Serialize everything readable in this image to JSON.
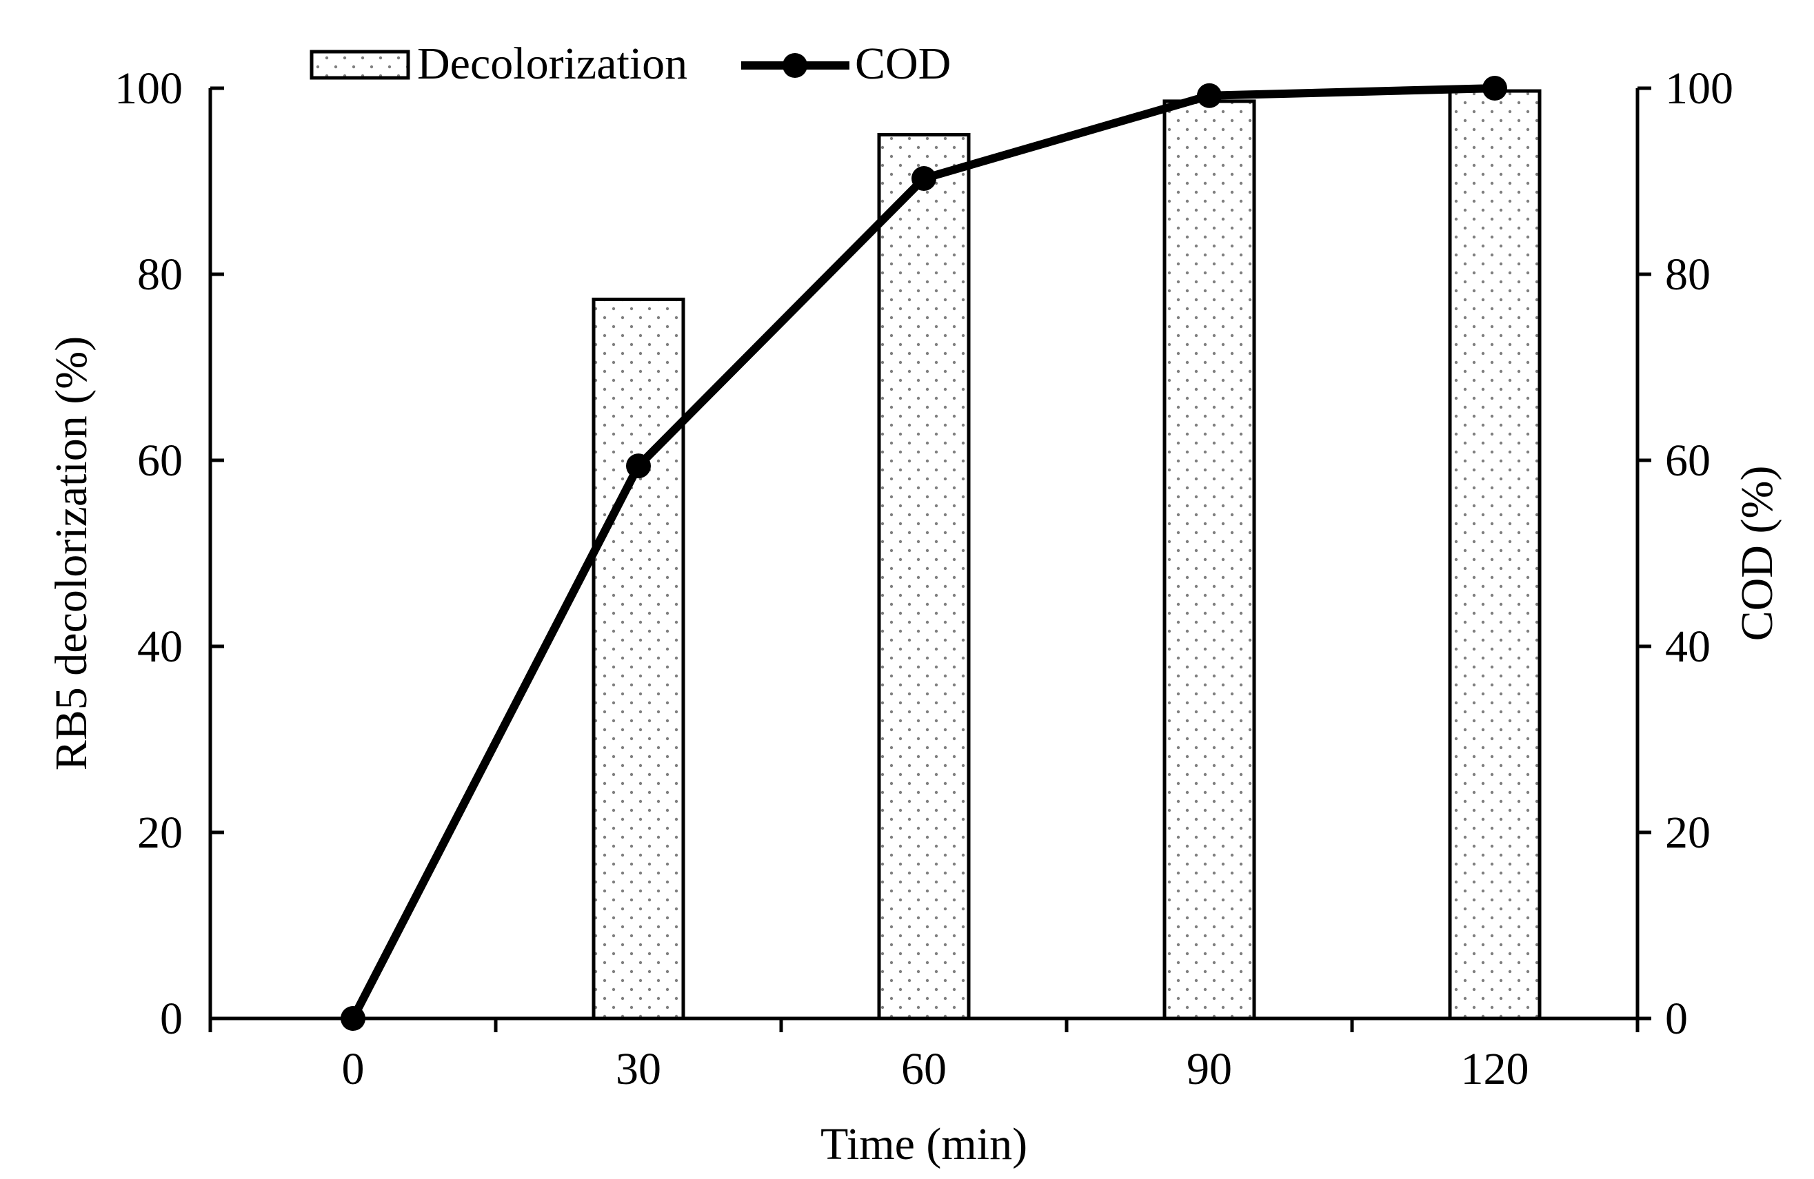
{
  "chart_data": {
    "type": "bar+line",
    "categories": [
      "0",
      "30",
      "60",
      "90",
      "120"
    ],
    "series": [
      {
        "name": "Decolorization",
        "kind": "bar",
        "axis": "left",
        "values": [
          0,
          77.3,
          95.0,
          98.6,
          99.7
        ]
      },
      {
        "name": "COD",
        "kind": "line",
        "axis": "right",
        "values": [
          0,
          59.4,
          90.3,
          99.2,
          100
        ]
      }
    ],
    "xlabel": "Time (min)",
    "ylabel_left": "RB5 decolorization (%)",
    "ylabel_right": "COD (%)",
    "ylim": [
      0,
      100
    ],
    "yticks": [
      0,
      20,
      40,
      60,
      80,
      100
    ],
    "legend_position": "top-left",
    "grid": false
  },
  "colors": {
    "line": "#000000",
    "bar_fill": "#ffffff",
    "bar_stroke": "#000000",
    "dot": "#7f7f7f"
  }
}
